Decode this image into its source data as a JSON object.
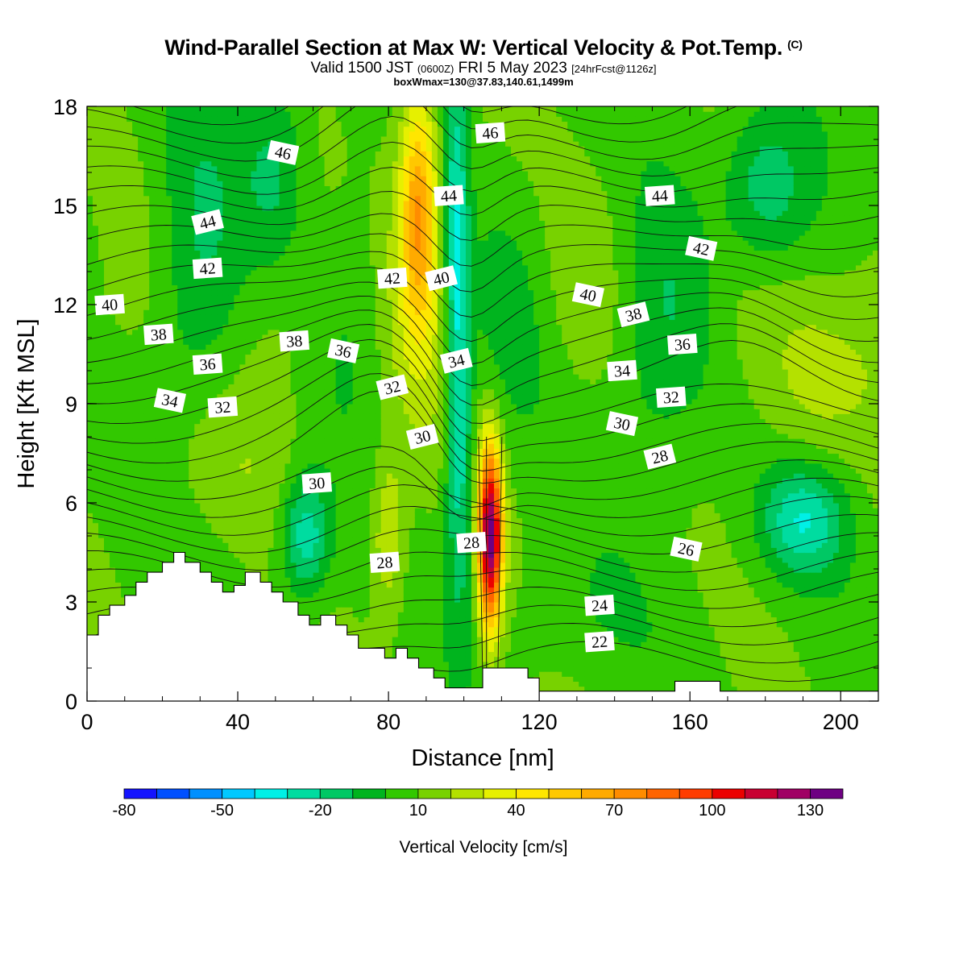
{
  "header": {
    "title": "Wind-Parallel Section at Max W: Vertical Velocity & Pot.Temp.",
    "copyright": "(C)",
    "valid_prefix": "Valid 1500 JST",
    "valid_utc": "(0600Z)",
    "valid_date": "FRI 5 May 2023",
    "forecast_note": "[24hrFcst@1126z]",
    "box_info": "boxWmax=130@37.83,140.61,1499m"
  },
  "chart_data": {
    "type": "heatmap",
    "xlabel": "Distance [nm]",
    "ylabel": "Height [Kft MSL]",
    "xlim": [
      0,
      210
    ],
    "ylim": [
      0,
      18
    ],
    "x_ticks": [
      0,
      40,
      80,
      120,
      160,
      200
    ],
    "y_ticks": [
      0,
      3,
      6,
      9,
      12,
      15,
      18
    ],
    "colorbar": {
      "label": "Vertical Velocity [cm/s]",
      "tick_labels": [
        "-80",
        "-50",
        "-20",
        "10",
        "40",
        "70",
        "100",
        "130"
      ],
      "tick_values": [
        -80,
        -50,
        -20,
        10,
        40,
        70,
        100,
        130
      ],
      "bounds": [
        -80,
        140
      ],
      "step": 10,
      "colors": [
        "#1414ff",
        "#0050ff",
        "#0090ff",
        "#00c8ff",
        "#00f0e6",
        "#00dca0",
        "#00c864",
        "#00b41e",
        "#32c800",
        "#78d200",
        "#b4e100",
        "#e6f000",
        "#ffe600",
        "#ffc800",
        "#ffaa00",
        "#ff8c00",
        "#ff6400",
        "#ff3c00",
        "#eb0000",
        "#c80032",
        "#a00064",
        "#6e0082"
      ]
    },
    "vertical_velocity_features": [
      {
        "name": "updraft core",
        "x": 107,
        "y_range": [
          2,
          8.5
        ],
        "peak": 130
      },
      {
        "name": "upper updraft",
        "x": 88,
        "y_range": [
          11,
          17.5
        ],
        "peak": 60
      },
      {
        "name": "lower updraft",
        "x": 80,
        "y_range": [
          2.5,
          7
        ],
        "peak": 30
      },
      {
        "name": "downdraft column",
        "x": 98,
        "y_range": [
          9,
          18
        ],
        "peak": -30
      },
      {
        "name": "downdraft",
        "x": 58,
        "y_range": [
          3.5,
          6.5
        ],
        "peak": -30
      },
      {
        "name": "downdraft",
        "x": 190,
        "y_range": [
          4.5,
          6.5
        ],
        "peak": -30
      },
      {
        "name": "downdraft",
        "x": 180,
        "y_range": [
          14,
          17
        ],
        "peak": -25
      },
      {
        "name": "updraft",
        "x": 190,
        "y_range": [
          7.5,
          12
        ],
        "peak": 20
      }
    ],
    "theta_contour_labels": [
      {
        "text": "46",
        "x": 52,
        "y": 16.6
      },
      {
        "text": "46",
        "x": 107,
        "y": 17.2
      },
      {
        "text": "44",
        "x": 96,
        "y": 15.3
      },
      {
        "text": "44",
        "x": 32,
        "y": 14.5
      },
      {
        "text": "44",
        "x": 152,
        "y": 15.3
      },
      {
        "text": "42",
        "x": 163,
        "y": 13.7
      },
      {
        "text": "42",
        "x": 164,
        "y": 13.7
      },
      {
        "text": "42",
        "x": 32,
        "y": 13.1
      },
      {
        "text": "42",
        "x": 81,
        "y": 12.8
      },
      {
        "text": "40",
        "x": 94,
        "y": 12.8
      },
      {
        "text": "40",
        "x": 133,
        "y": 12.3
      },
      {
        "text": "40",
        "x": 6,
        "y": 12.0
      },
      {
        "text": "38",
        "x": 145,
        "y": 11.7
      },
      {
        "text": "38",
        "x": 19,
        "y": 11.1
      },
      {
        "text": "38",
        "x": 55,
        "y": 10.9
      },
      {
        "text": "36",
        "x": 68,
        "y": 10.6
      },
      {
        "text": "36",
        "x": 158,
        "y": 10.8
      },
      {
        "text": "36",
        "x": 32,
        "y": 10.2
      },
      {
        "text": "34",
        "x": 98,
        "y": 10.3
      },
      {
        "text": "34",
        "x": 142,
        "y": 10.0
      },
      {
        "text": "34",
        "x": 22,
        "y": 9.1
      },
      {
        "text": "32",
        "x": 81,
        "y": 9.5
      },
      {
        "text": "32",
        "x": 155,
        "y": 9.2
      },
      {
        "text": "32",
        "x": 36,
        "y": 8.9
      },
      {
        "text": "30",
        "x": 89,
        "y": 8.0
      },
      {
        "text": "30",
        "x": 142,
        "y": 8.4
      },
      {
        "text": "30",
        "x": 61,
        "y": 6.6
      },
      {
        "text": "28",
        "x": 152,
        "y": 7.4
      },
      {
        "text": "28",
        "x": 102,
        "y": 4.8
      },
      {
        "text": "28",
        "x": 79,
        "y": 4.2
      },
      {
        "text": "26",
        "x": 159,
        "y": 4.6
      },
      {
        "text": "24",
        "x": 136,
        "y": 2.9
      },
      {
        "text": "22",
        "x": 136,
        "y": 1.8
      }
    ],
    "terrain": {
      "x": [
        0,
        3,
        3,
        6,
        6,
        10,
        10,
        13,
        13,
        16,
        16,
        20,
        20,
        23,
        23,
        26,
        26,
        30,
        30,
        33,
        33,
        36,
        36,
        39,
        39,
        42,
        42,
        46,
        46,
        49,
        49,
        52,
        52,
        56,
        56,
        59,
        59,
        62,
        62,
        66,
        66,
        69,
        69,
        72,
        72,
        76,
        76,
        79,
        79,
        82,
        82,
        85,
        85,
        88,
        88,
        92,
        92,
        95,
        95,
        98,
        98,
        105,
        105,
        108,
        108,
        117,
        117,
        120,
        120,
        156,
        156,
        168,
        168,
        210
      ],
      "height": [
        2.0,
        2.0,
        2.6,
        2.6,
        2.9,
        2.9,
        3.2,
        3.2,
        3.6,
        3.6,
        3.9,
        3.9,
        4.2,
        4.2,
        4.5,
        4.5,
        4.2,
        4.2,
        3.9,
        3.9,
        3.6,
        3.6,
        3.3,
        3.3,
        3.5,
        3.5,
        3.9,
        3.9,
        3.6,
        3.6,
        3.3,
        3.3,
        3.0,
        3.0,
        2.6,
        2.6,
        2.3,
        2.3,
        2.6,
        2.6,
        2.3,
        2.3,
        2.0,
        2.0,
        1.6,
        1.6,
        1.6,
        1.6,
        1.3,
        1.3,
        1.6,
        1.6,
        1.3,
        1.3,
        1.0,
        1.0,
        0.7,
        0.7,
        0.4,
        0.4,
        0.4,
        0.4,
        1.0,
        1.0,
        1.0,
        1.0,
        0.7,
        0.7,
        0.3,
        0.3,
        0.6,
        0.6,
        0.3,
        0.3
      ]
    }
  }
}
